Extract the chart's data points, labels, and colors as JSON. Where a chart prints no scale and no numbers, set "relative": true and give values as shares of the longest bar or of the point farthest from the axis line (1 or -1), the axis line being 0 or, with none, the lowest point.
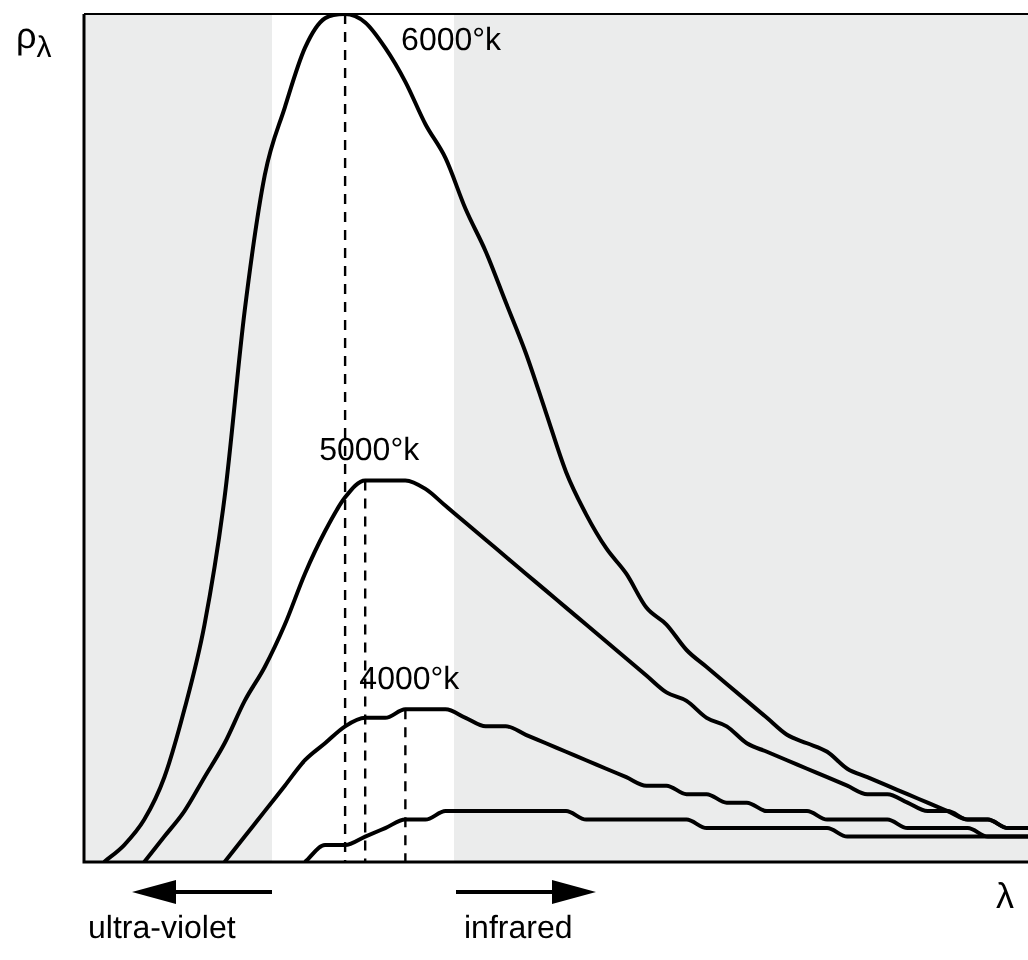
{
  "chart_data": {
    "type": "line",
    "relative": true,
    "xlabel": "λ",
    "ylabel": "ρ$_{λ}$",
    "categories": [
      null,
      null,
      null,
      null,
      null,
      null,
      null,
      null,
      null,
      null,
      null,
      null,
      null,
      null,
      null,
      null,
      null,
      null,
      null,
      null,
      null,
      null,
      null,
      null,
      null,
      null,
      null,
      null,
      null,
      null,
      null,
      null,
      null,
      null,
      null,
      null,
      null,
      null,
      null,
      null,
      null,
      null,
      null,
      null,
      null,
      null,
      null,
      null
    ],
    "series": [
      {
        "name": "6000°k",
        "color": "#000000",
        "values": [
          null,
          0,
          0.02,
          0.05,
          0.1,
          0.18,
          0.28,
          0.43,
          0.65,
          0.81,
          0.89,
          0.96,
          0.995,
          1,
          0.99,
          0.96,
          0.92,
          0.87,
          0.83,
          0.77,
          0.72,
          0.66,
          0.6,
          0.53,
          0.46,
          0.41,
          0.37,
          0.34,
          0.3,
          0.28,
          0.25,
          0.23,
          0.21,
          0.19,
          0.17,
          0.15,
          0.14,
          0.13,
          0.11,
          0.1,
          0.09,
          0.08,
          0.07,
          0.06,
          0.05,
          0.05,
          0.04,
          0.04
        ]
      },
      {
        "name": "5000°k",
        "color": "#000000",
        "values": [
          null,
          null,
          null,
          0,
          0.03,
          0.06,
          0.1,
          0.14,
          0.19,
          0.23,
          0.28,
          0.34,
          0.39,
          0.43,
          0.45,
          0.45,
          0.45,
          0.44,
          0.42,
          0.4,
          0.38,
          0.36,
          0.34,
          0.32,
          0.3,
          0.28,
          0.26,
          0.24,
          0.22,
          0.2,
          0.19,
          0.17,
          0.16,
          0.14,
          0.13,
          0.12,
          0.11,
          0.1,
          0.09,
          0.08,
          0.08,
          0.07,
          0.06,
          0.06,
          0.05,
          0.05,
          0.04,
          0.04
        ]
      },
      {
        "name": "4000°k",
        "color": "#000000",
        "values": [
          null,
          null,
          null,
          null,
          null,
          null,
          null,
          0,
          0.03,
          0.06,
          0.09,
          0.12,
          0.14,
          0.16,
          0.17,
          0.17,
          0.18,
          0.18,
          0.18,
          0.17,
          0.16,
          0.16,
          0.15,
          0.14,
          0.13,
          0.12,
          0.11,
          0.1,
          0.09,
          0.09,
          0.08,
          0.08,
          0.07,
          0.07,
          0.06,
          0.06,
          0.06,
          0.05,
          0.05,
          0.05,
          0.05,
          0.04,
          0.04,
          0.04,
          0.04,
          0.03,
          0.03,
          0.03
        ]
      },
      {
        "color": "#000000",
        "values": [
          null,
          null,
          null,
          null,
          null,
          null,
          null,
          null,
          null,
          null,
          null,
          0,
          0.02,
          0.02,
          0.03,
          0.04,
          0.05,
          0.05,
          0.06,
          0.06,
          0.06,
          0.06,
          0.06,
          0.06,
          0.06,
          0.05,
          0.05,
          0.05,
          0.05,
          0.05,
          0.05,
          0.04,
          0.04,
          0.04,
          0.04,
          0.04,
          0.04,
          0.04,
          0.03,
          0.03,
          0.03,
          0.03,
          0.03,
          0.03,
          0.03,
          0.03,
          0.03,
          0.03
        ]
      }
    ],
    "annotations": [
      "ultra-violet",
      "infrared"
    ]
  }
}
